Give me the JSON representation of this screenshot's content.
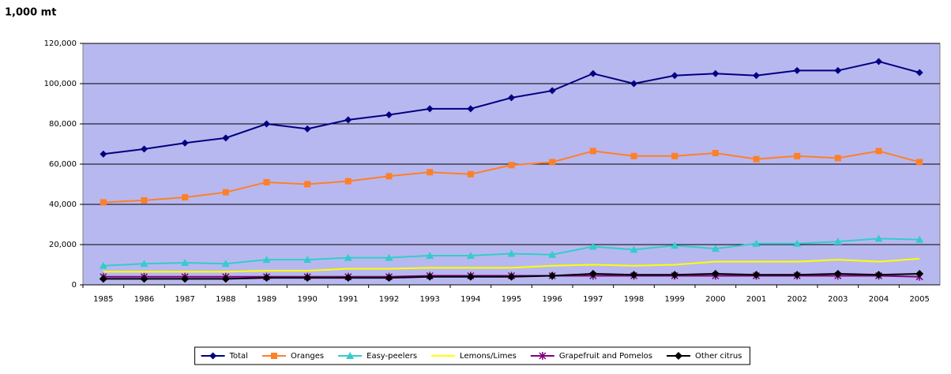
{
  "chart_data": {
    "type": "line",
    "y_axis_label": "1,000 mt",
    "categories": [
      "1985",
      "1986",
      "1987",
      "1988",
      "1989",
      "1990",
      "1991",
      "1992",
      "1993",
      "1994",
      "1995",
      "1996",
      "1997",
      "1998",
      "1999",
      "2000",
      "2001",
      "2002",
      "2003",
      "2004",
      "2005"
    ],
    "series": [
      {
        "name": "Total",
        "color": "#000080",
        "marker": "diamond",
        "values": [
          65000,
          67500,
          70500,
          73000,
          80000,
          77500,
          82000,
          84500,
          87500,
          87500,
          93000,
          96500,
          105000,
          100000,
          104000,
          105000,
          104000,
          106500,
          106500,
          111000,
          105500
        ]
      },
      {
        "name": "Oranges",
        "color": "#ff7f27",
        "marker": "square",
        "values": [
          41000,
          42000,
          43500,
          46000,
          51000,
          50000,
          51500,
          54000,
          56000,
          55000,
          59500,
          61000,
          66500,
          64000,
          64000,
          65500,
          62500,
          64000,
          63000,
          66500,
          61000
        ]
      },
      {
        "name": "Easy-peelers",
        "color": "#33cccc",
        "marker": "triangle",
        "values": [
          9500,
          10500,
          11000,
          10500,
          12500,
          12500,
          13500,
          13500,
          14500,
          14500,
          15500,
          15000,
          19000,
          17500,
          19500,
          18000,
          20500,
          20500,
          21500,
          23000,
          22500
        ]
      },
      {
        "name": "Lemons/Limes",
        "color": "#ffff00",
        "marker": "none",
        "values": [
          6500,
          6500,
          6500,
          6500,
          7000,
          7000,
          8000,
          8000,
          8500,
          8500,
          8500,
          9500,
          10000,
          9500,
          10000,
          11500,
          11500,
          11500,
          12500,
          11500,
          13000
        ]
      },
      {
        "name": "Grapefruit and Pomelos",
        "color": "#800080",
        "marker": "star",
        "values": [
          4000,
          4000,
          4000,
          4000,
          4000,
          4000,
          4000,
          4000,
          4500,
          4500,
          4500,
          4500,
          4500,
          4500,
          4500,
          4500,
          4500,
          4500,
          4500,
          4500,
          4000
        ]
      },
      {
        "name": "Other citrus",
        "color": "#000000",
        "marker": "circle",
        "values": [
          3000,
          3000,
          3000,
          3000,
          3500,
          3500,
          3500,
          3500,
          4000,
          4000,
          4000,
          4500,
          5500,
          5000,
          5000,
          5500,
          5000,
          5000,
          5500,
          5000,
          5500
        ]
      }
    ],
    "ylim": [
      0,
      120000
    ],
    "yticks": [
      0,
      {
        "value": 20000,
        "label": "20,000"
      },
      {
        "value": 40000,
        "label": "40,000"
      },
      {
        "value": 60000,
        "label": "60,000"
      },
      {
        "value": 80000,
        "label": "80,000"
      },
      {
        "value": 100000,
        "label": "100,000"
      },
      {
        "value": 120000,
        "label": "120,000"
      }
    ],
    "grid": true,
    "legend": "bottom",
    "plot_background": "#b8b8f0"
  }
}
